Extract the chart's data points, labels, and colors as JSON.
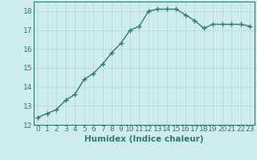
{
  "x": [
    0,
    1,
    2,
    3,
    4,
    5,
    6,
    7,
    8,
    9,
    10,
    11,
    12,
    13,
    14,
    15,
    16,
    17,
    18,
    19,
    20,
    21,
    22,
    23
  ],
  "y": [
    12.4,
    12.6,
    12.8,
    13.3,
    13.6,
    14.4,
    14.7,
    15.2,
    15.8,
    16.3,
    17.0,
    17.2,
    18.0,
    18.1,
    18.1,
    18.1,
    17.8,
    17.5,
    17.1,
    17.3,
    17.3,
    17.3,
    17.3,
    17.2
  ],
  "line_color": "#2e7d6e",
  "marker": "+",
  "markersize": 4,
  "markeredgewidth": 1.0,
  "linewidth": 1.0,
  "bg_color": "#cdecea",
  "grid_color": "#b8d8d5",
  "xlabel": "Humidex (Indice chaleur)",
  "xlabel_fontsize": 7.5,
  "tick_fontsize": 6.5,
  "ylim": [
    12,
    18.5
  ],
  "xlim": [
    -0.5,
    23.5
  ],
  "yticks": [
    12,
    13,
    14,
    15,
    16,
    17,
    18
  ],
  "xtick_labels": [
    "0",
    "1",
    "2",
    "3",
    "4",
    "5",
    "6",
    "7",
    "8",
    "9",
    "10",
    "11",
    "12",
    "13",
    "14",
    "15",
    "16",
    "17",
    "18",
    "19",
    "20",
    "21",
    "22",
    "23"
  ]
}
